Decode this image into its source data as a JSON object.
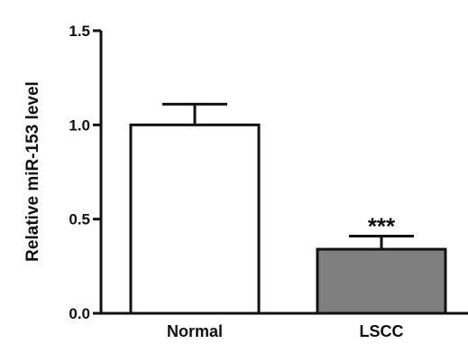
{
  "chart_data": {
    "type": "bar",
    "title": "",
    "xlabel": "",
    "ylabel": "Relative miR-153 level",
    "categories": [
      "Normal",
      "LSCC"
    ],
    "values": [
      1.0,
      0.34
    ],
    "errors": [
      0.11,
      0.07
    ],
    "bar_colors": [
      "#ffffff",
      "#7f7f7f"
    ],
    "annotations": [
      "",
      "***"
    ],
    "ylim": [
      0.0,
      1.5
    ],
    "yticks": [
      0.0,
      0.5,
      1.0,
      1.5
    ],
    "ytick_labels": [
      "0.0",
      "0.5",
      "1.0",
      "1.5"
    ],
    "grid": false,
    "legend": "none"
  }
}
